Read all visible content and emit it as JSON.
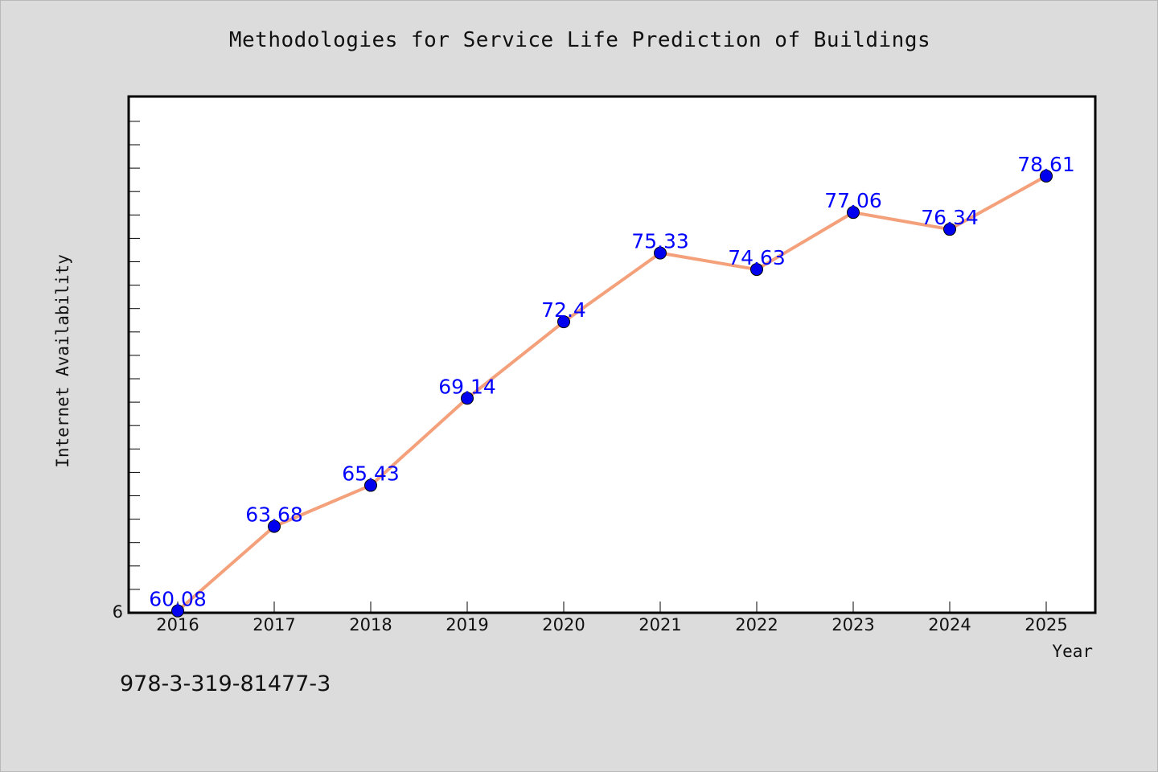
{
  "footer": {
    "isbn": "978-3-319-81477-3"
  },
  "chart_data": {
    "type": "line",
    "title": "Methodologies for Service Life Prediction of Buildings",
    "xlabel": "Year",
    "ylabel": "Internet Availability",
    "x": [
      "2016",
      "2017",
      "2018",
      "2019",
      "2020",
      "2021",
      "2022",
      "2023",
      "2024",
      "2025"
    ],
    "series": [
      {
        "values": [
          60.08,
          63.68,
          65.43,
          69.14,
          72.4,
          75.33,
          74.63,
          77.06,
          76.34,
          78.61
        ],
        "data_labels": [
          "60.08",
          "63.68",
          "65.43",
          "69.14",
          "72.4",
          "75.33",
          "74.63",
          "77.06",
          "76.34",
          "78.61"
        ]
      }
    ],
    "ylim": [
      60,
      82
    ],
    "y_tick_labels": [
      "6"
    ],
    "line_color": "#f4a07a",
    "marker_color": "#0000ee",
    "label_color": "#0000ff",
    "grid": false
  }
}
